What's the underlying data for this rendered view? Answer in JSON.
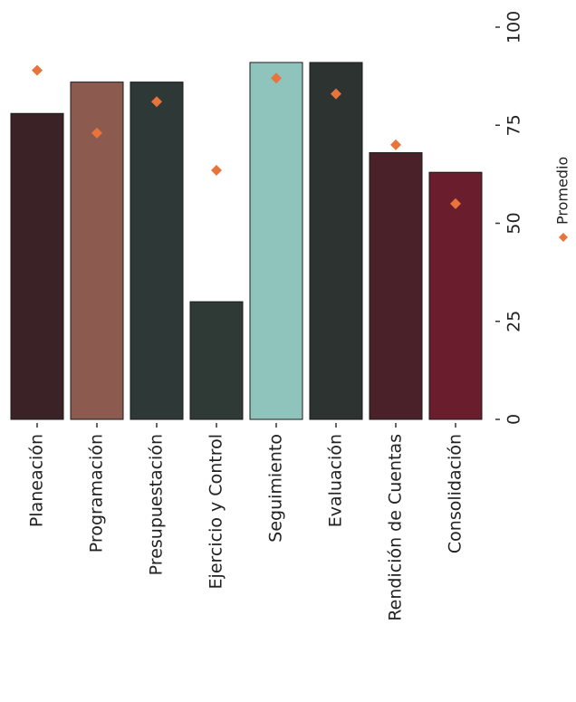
{
  "chart_data": {
    "type": "bar",
    "categories": [
      "Planeación",
      "Programación",
      "Presupuestación",
      "Ejercicio y Control",
      "Seguimiento",
      "Evaluación",
      "Rendición de Cuentas",
      "Consolidación"
    ],
    "values": [
      78,
      86,
      86,
      30,
      91,
      91,
      68,
      63
    ],
    "colors": [
      "#3a2226",
      "#8c5a4e",
      "#2e3836",
      "#2f3a37",
      "#8fc4bd",
      "#2c3331",
      "#4a2128",
      "#6a1d2c"
    ],
    "series": [
      {
        "name": "Promedio",
        "color": "#e8743b",
        "values": [
          89,
          73,
          81,
          63.5,
          87,
          83,
          70,
          55
        ]
      }
    ],
    "ylim": [
      0,
      100
    ],
    "yticks": [
      0,
      25,
      50,
      75,
      100
    ]
  }
}
